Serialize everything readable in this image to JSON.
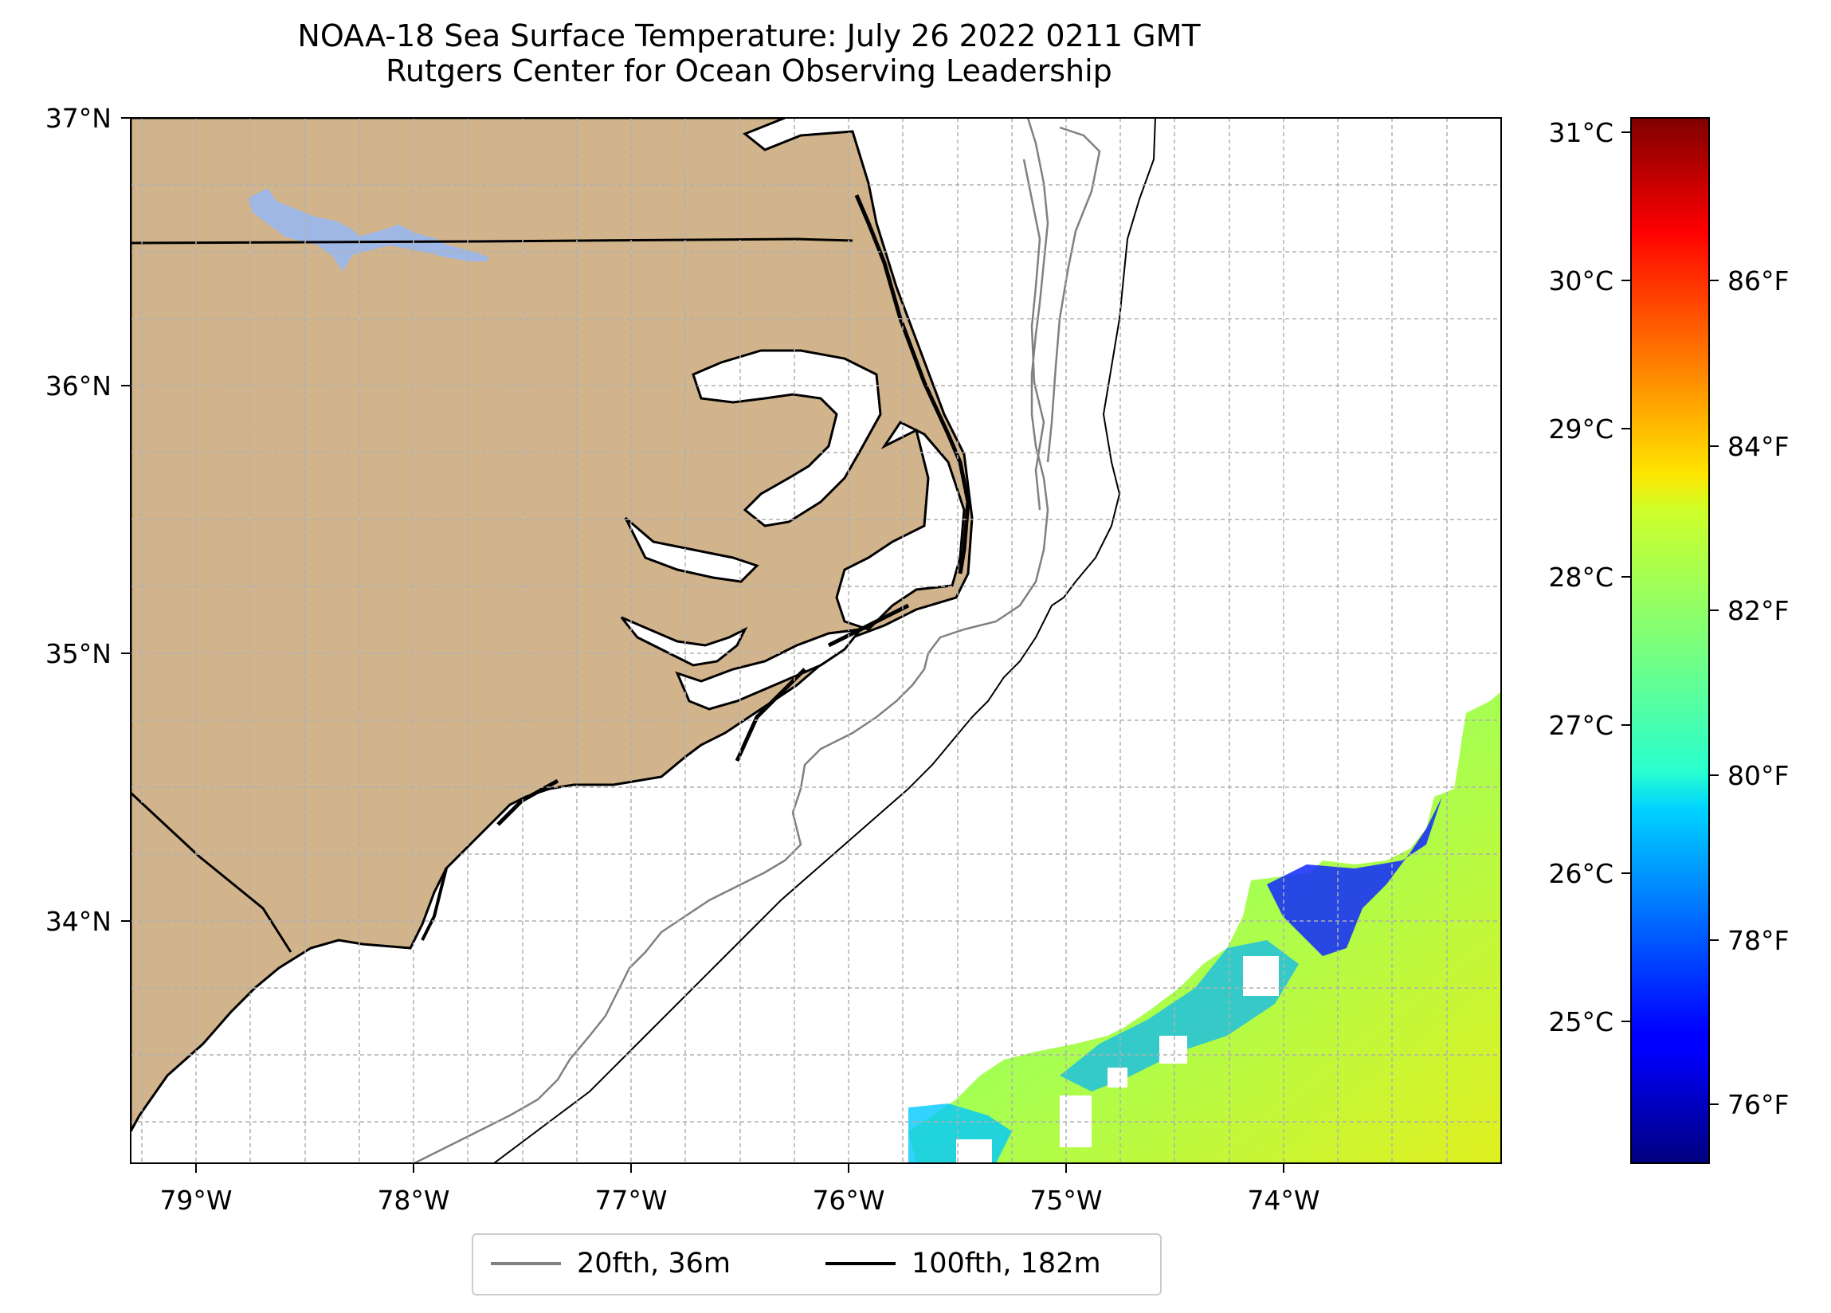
{
  "title": {
    "line1": "NOAA-18 Sea Surface Temperature: July 26 2022 0211 GMT",
    "line2": "Rutgers Center for Ocean Observing Leadership"
  },
  "map": {
    "lon_range": [
      -79.3,
      -73.15
    ],
    "lat_range": [
      33.1,
      37.0
    ],
    "lon_ticks": [
      "79°W",
      "78°W",
      "77°W",
      "76°W",
      "75°W",
      "74°W"
    ],
    "lat_ticks": [
      "37°N",
      "36°N",
      "35°N",
      "34°N"
    ],
    "gridlines": true,
    "land_color": "#d2b48c",
    "lake_color": "#9fb7e4"
  },
  "colorbar": {
    "celsius_ticks": [
      "31°C",
      "30°C",
      "29°C",
      "28°C",
      "27°C",
      "26°C",
      "25°C"
    ],
    "fahrenheit_ticks": [
      "86°F",
      "84°F",
      "82°F",
      "80°F",
      "78°F",
      "76°F"
    ],
    "range_celsius": [
      24.0,
      31.1
    ],
    "colormap": "jet"
  },
  "legend": {
    "items": [
      {
        "label": "20fth, 36m",
        "color": "#808080"
      },
      {
        "label": "100fth, 182m",
        "color": "#000000"
      }
    ]
  }
}
